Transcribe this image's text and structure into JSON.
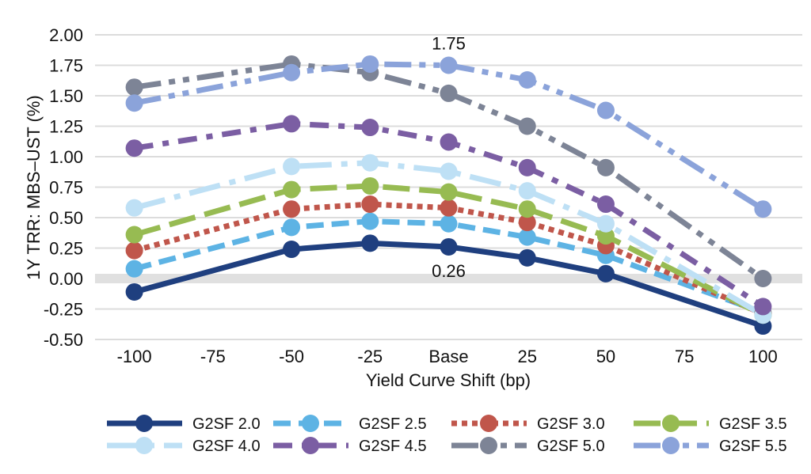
{
  "chart_data": {
    "type": "line",
    "title": "",
    "xlabel": "Yield Curve Shift (bp)",
    "ylabel": "1Y TRR: MBS–UST (%)",
    "categories": [
      "-100",
      "-75",
      "-50",
      "-25",
      "Base",
      "25",
      "50",
      "75",
      "100"
    ],
    "ylim": [
      -0.5,
      2.0
    ],
    "yticks": [
      "2.00",
      "1.75",
      "1.50",
      "1.25",
      "1.00",
      "0.75",
      "0.50",
      "0.25",
      "0.00",
      "-0.25",
      "-0.50"
    ],
    "ytick_values": [
      2.0,
      1.75,
      1.5,
      1.25,
      1.0,
      0.75,
      0.5,
      0.25,
      0.0,
      -0.25,
      -0.5
    ],
    "grid": true,
    "zero_band": true,
    "legend_position": "bottom",
    "series": [
      {
        "name": "G2SF 2.0",
        "color": "#1F3F7F",
        "dash": "solid",
        "values": [
          -0.11,
          null,
          0.24,
          0.29,
          0.26,
          0.17,
          0.04,
          null,
          -0.39
        ]
      },
      {
        "name": "G2SF 2.5",
        "color": "#5DB3E4",
        "dash": "dash",
        "values": [
          0.08,
          null,
          0.42,
          0.47,
          0.45,
          0.34,
          0.19,
          null,
          -0.28
        ]
      },
      {
        "name": "G2SF 3.0",
        "color": "#C0564B",
        "dash": "dot",
        "values": [
          0.23,
          null,
          0.57,
          0.61,
          0.58,
          0.46,
          0.27,
          null,
          -0.29
        ]
      },
      {
        "name": "G2SF 3.5",
        "color": "#97BB52",
        "dash": "longdash",
        "values": [
          0.36,
          null,
          0.73,
          0.76,
          0.71,
          0.57,
          0.35,
          null,
          -0.3
        ]
      },
      {
        "name": "G2SF 4.0",
        "color": "#BEE0F5",
        "dash": "longdashdot",
        "values": [
          0.58,
          null,
          0.92,
          0.95,
          0.88,
          0.72,
          0.45,
          null,
          -0.3
        ]
      },
      {
        "name": "G2SF 4.5",
        "color": "#7B5EA3",
        "dash": "dashdot",
        "values": [
          1.07,
          null,
          1.27,
          1.24,
          1.12,
          0.91,
          0.61,
          null,
          -0.23
        ]
      },
      {
        "name": "G2SF 5.0",
        "color": "#7D8496",
        "dash": "longdashdotdot",
        "values": [
          1.57,
          null,
          1.76,
          1.69,
          1.52,
          1.25,
          0.91,
          null,
          0.0
        ]
      },
      {
        "name": "G2SF 5.5",
        "color": "#8BA3DA",
        "dash": "longdashdotdot",
        "values": [
          1.44,
          null,
          1.69,
          1.76,
          1.75,
          1.63,
          1.38,
          null,
          0.57
        ]
      }
    ],
    "annotations": [
      {
        "text": "1.75",
        "series": "G2SF 5.5",
        "category": "Base",
        "position": "above"
      },
      {
        "text": "0.26",
        "series": "G2SF 2.0",
        "category": "Base",
        "position": "below"
      }
    ]
  }
}
